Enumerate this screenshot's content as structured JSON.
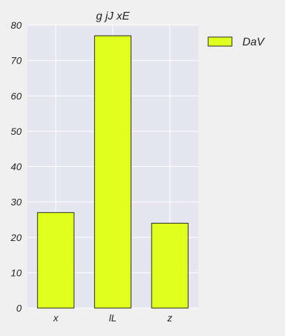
{
  "chart_data": {
    "type": "bar",
    "title": "g jJ xE",
    "xlabel": "",
    "ylabel": "",
    "categories": [
      "x",
      "lL",
      "z"
    ],
    "series": [
      {
        "name": "DaV",
        "values": [
          27,
          77,
          24
        ]
      }
    ],
    "ylim": [
      0,
      80
    ],
    "yticks": [
      0,
      10,
      20,
      30,
      40,
      50,
      60,
      70,
      80
    ],
    "grid": true,
    "legend": "top-right outside",
    "colors": {
      "bar_fill": "#dfff1c",
      "bar_stroke": "#222222",
      "plot_background": "#e6e6f0",
      "grid": "#ffffff",
      "page_background": "#f0f0f0"
    }
  }
}
